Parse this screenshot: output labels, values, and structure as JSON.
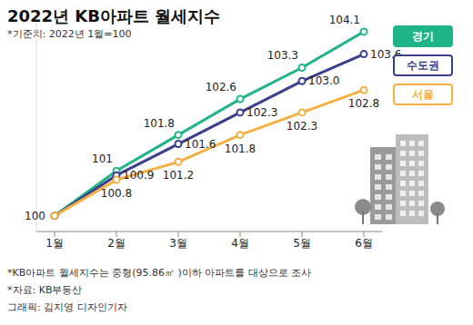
{
  "chart_data": {
    "type": "line",
    "title": "2022년 KB아파트 월세지수",
    "subtitle": "*기준치: 2022년 1월=100",
    "categories": [
      "1월",
      "2월",
      "3월",
      "4월",
      "5월",
      "6월"
    ],
    "series": [
      {
        "name": "경기",
        "color": "#1fb48a",
        "marker": "circle",
        "values": [
          100,
          101,
          101.8,
          102.6,
          103.3,
          104.1
        ],
        "value_labels": [
          "100",
          "101",
          "101.8",
          "102.6",
          "103.3",
          "104.1"
        ]
      },
      {
        "name": "수도권",
        "color": "#3b3f8c",
        "marker": "circle",
        "values": [
          100,
          100.9,
          101.6,
          102.3,
          103.0,
          103.6
        ],
        "value_labels": [
          null,
          "100.9",
          "101.6",
          "102.3",
          "103.0",
          "103.6"
        ]
      },
      {
        "name": "서울",
        "color": "#f5b041",
        "marker": "circle",
        "values": [
          100,
          100.8,
          101.2,
          101.8,
          102.3,
          102.8
        ],
        "value_labels": [
          null,
          "100.8",
          "101.2",
          "101.8",
          "102.3",
          "102.8"
        ]
      }
    ],
    "ylim": [
      99.65,
      104.3
    ],
    "data_labels": true,
    "tick_labels": "x",
    "grid": false,
    "legend": "right",
    "annotations": [
      "*KB아파트 월세지수는 중형(95.86㎡ )이하 아파트를 대상으로 조사",
      "*자료: KB부동산",
      "그래픽: 김지영 디자인기자"
    ]
  }
}
